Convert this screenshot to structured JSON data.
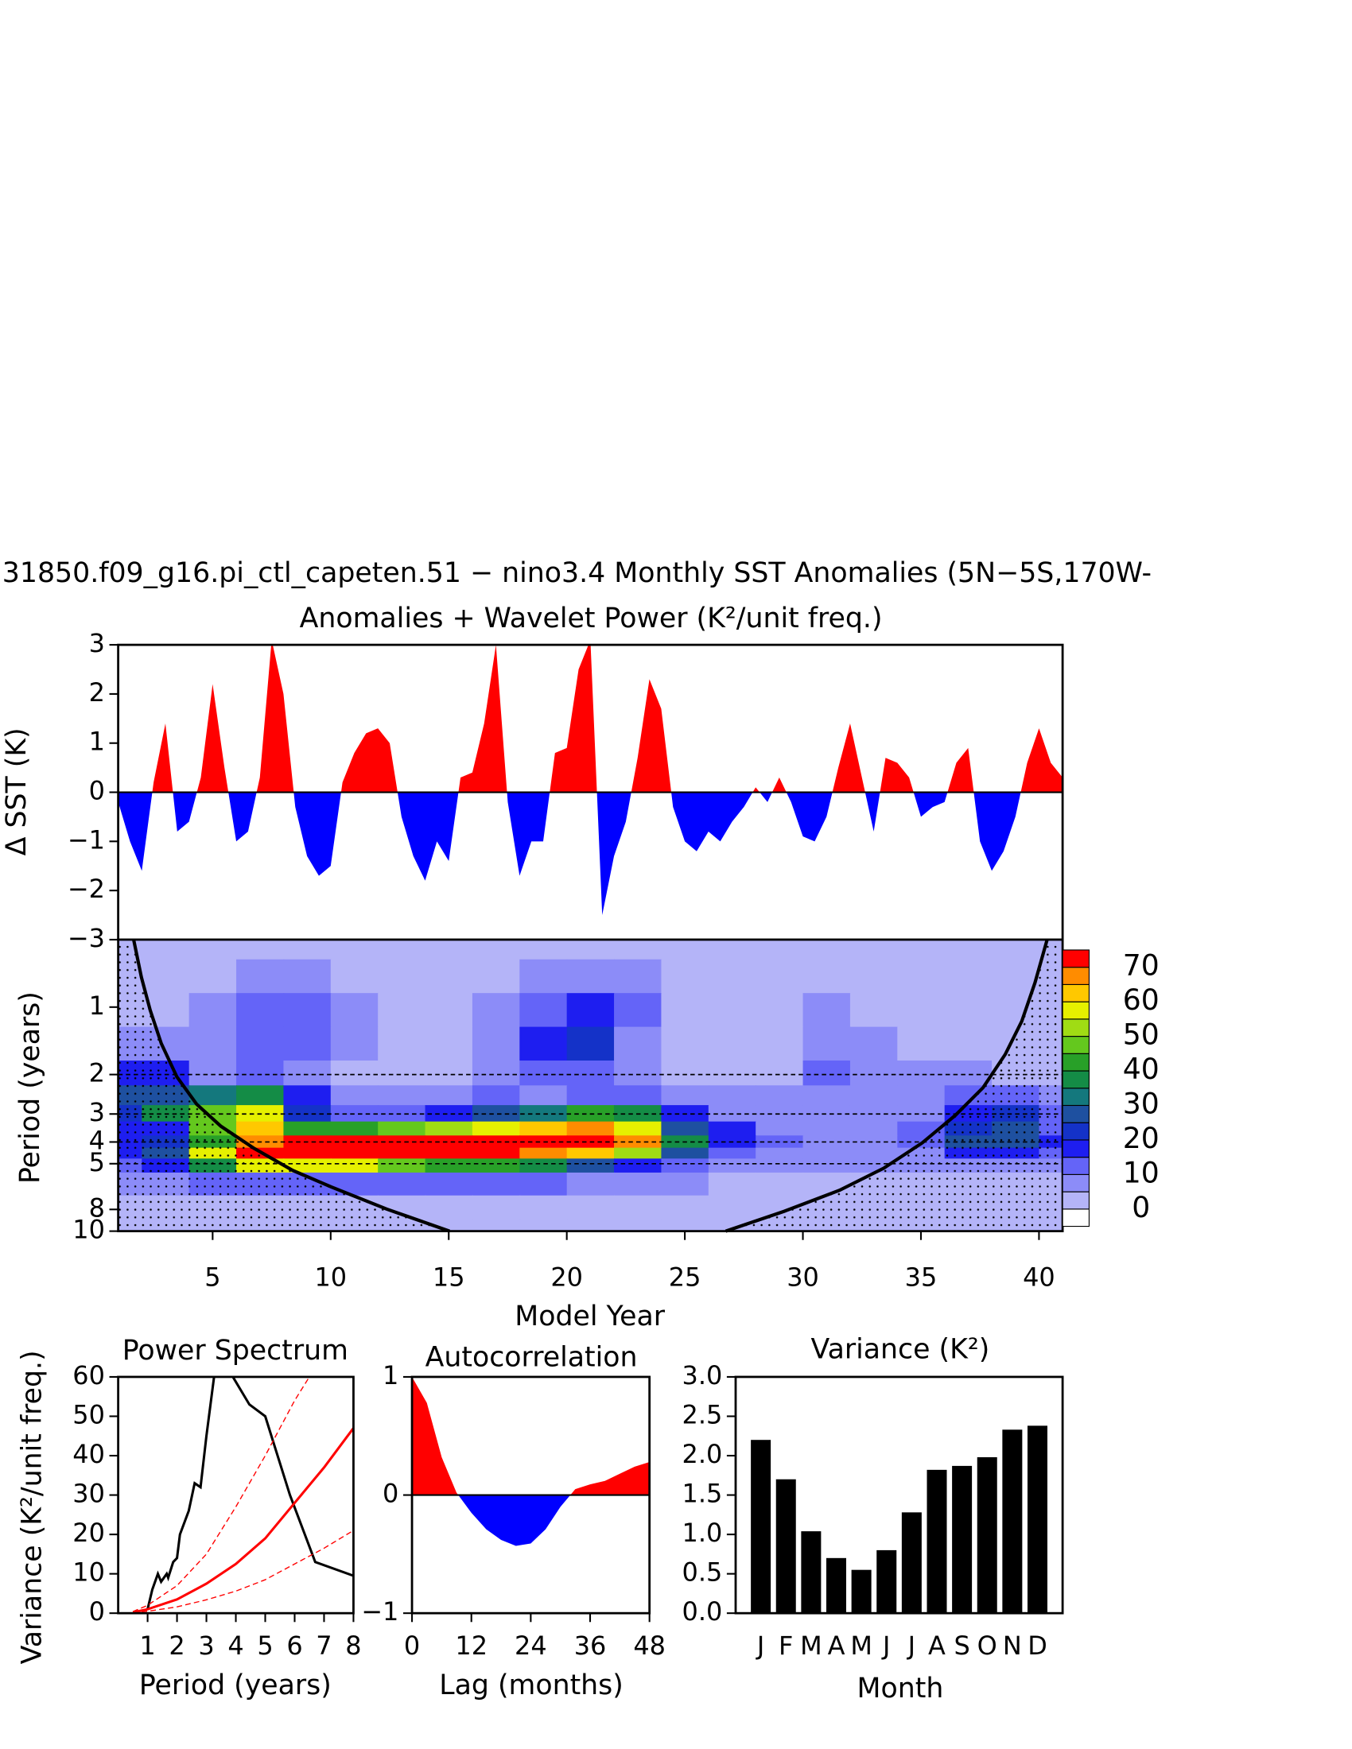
{
  "chart_data": [
    {
      "type": "area",
      "title": "31850.f09_g16.pi_ctl_capeten.51 − nino3.4 Monthly SST Anomalies (5N−5S,170W-",
      "subtitle": "Anomalies + Wavelet Power (K²/unit freq.)",
      "y_label": "Δ SST (K)",
      "x": [
        1,
        1.5,
        2,
        2.5,
        3,
        3.5,
        4,
        4.5,
        5,
        5.5,
        6,
        6.5,
        7,
        7.5,
        8,
        8.5,
        9,
        9.5,
        10,
        10.5,
        11,
        11.5,
        12,
        12.5,
        13,
        13.5,
        14,
        14.5,
        15,
        15.5,
        16,
        16.5,
        17,
        17.5,
        18,
        18.5,
        19,
        19.5,
        20,
        20.5,
        21,
        21.5,
        22,
        22.5,
        23,
        23.5,
        24,
        24.5,
        25,
        25.5,
        26,
        26.5,
        27,
        27.5,
        28,
        28.5,
        29,
        29.5,
        30,
        30.5,
        31,
        31.5,
        32,
        32.5,
        33,
        33.5,
        34,
        34.5,
        35,
        35.5,
        36,
        36.5,
        37,
        37.5,
        38,
        38.5,
        39,
        39.5,
        40,
        40.5,
        41
      ],
      "values": [
        -0.2,
        -1.0,
        -1.6,
        0.2,
        1.4,
        -0.8,
        -0.6,
        0.3,
        2.2,
        0.5,
        -1.0,
        -0.8,
        0.3,
        3.1,
        2.0,
        -0.3,
        -1.3,
        -1.7,
        -1.5,
        0.2,
        0.8,
        1.2,
        1.3,
        1.0,
        -0.5,
        -1.3,
        -1.8,
        -1.0,
        -1.4,
        0.3,
        0.4,
        1.4,
        3.0,
        -0.2,
        -1.7,
        -1.0,
        -1.0,
        0.8,
        0.9,
        2.5,
        3.1,
        -2.5,
        -1.3,
        -0.6,
        0.7,
        2.3,
        1.7,
        -0.3,
        -1.0,
        -1.2,
        -0.8,
        -1.0,
        -0.6,
        -0.3,
        0.1,
        -0.2,
        0.3,
        -0.2,
        -0.9,
        -1.0,
        -0.5,
        0.5,
        1.4,
        0.3,
        -0.8,
        0.7,
        0.6,
        0.3,
        -0.5,
        -0.3,
        -0.2,
        0.6,
        0.9,
        -1.0,
        -1.6,
        -1.2,
        -0.5,
        0.6,
        1.3,
        0.6,
        0.3
      ],
      "positive_color": "#ff0000",
      "negative_color": "#0000ff",
      "xlim": [
        1,
        41
      ],
      "ylim": [
        -3,
        3
      ],
      "yticks": [
        {
          "value": -3,
          "label": "−3"
        },
        {
          "value": -2,
          "label": "−2"
        },
        {
          "value": -1,
          "label": "−1"
        },
        0,
        1,
        2,
        3
      ]
    },
    {
      "type": "contour",
      "x_label": "Model Year",
      "y_label": "Period (years)",
      "x": [
        1,
        3,
        5,
        7,
        9,
        11,
        13,
        15,
        17,
        19,
        21,
        23,
        25,
        27,
        29,
        31,
        33,
        35,
        37,
        39,
        41
      ],
      "y": [
        0.5,
        0.75,
        1,
        1.5,
        2,
        2.5,
        3,
        3.5,
        4,
        4.5,
        5,
        6,
        8,
        10
      ],
      "z": [
        [
          3,
          3,
          3,
          3,
          3,
          3,
          3,
          3,
          3,
          3,
          3,
          3,
          3,
          3,
          3,
          3,
          3,
          3,
          3,
          3,
          3
        ],
        [
          3,
          3,
          3,
          5,
          6,
          3,
          3,
          3,
          3,
          5,
          5,
          5,
          3,
          3,
          3,
          3,
          3,
          3,
          3,
          3,
          3
        ],
        [
          3,
          3,
          6,
          12,
          14,
          6,
          3,
          3,
          9,
          14,
          16,
          12,
          3,
          3,
          3,
          6,
          3,
          3,
          3,
          3,
          3
        ],
        [
          6,
          6,
          8,
          12,
          12,
          6,
          3,
          3,
          9,
          15,
          20,
          8,
          3,
          3,
          3,
          8,
          8,
          4,
          3,
          3,
          3
        ],
        [
          18,
          15,
          8,
          10,
          8,
          4,
          3,
          3,
          6,
          12,
          10,
          6,
          3,
          3,
          3,
          10,
          8,
          6,
          6,
          4,
          3
        ],
        [
          25,
          28,
          30,
          35,
          15,
          6,
          5,
          6,
          10,
          8,
          10,
          10,
          6,
          6,
          6,
          7,
          7,
          8,
          10,
          12,
          8
        ],
        [
          20,
          35,
          45,
          55,
          22,
          12,
          12,
          15,
          25,
          30,
          40,
          38,
          15,
          8,
          5,
          5,
          5,
          6,
          15,
          20,
          10
        ],
        [
          15,
          18,
          45,
          60,
          40,
          40,
          45,
          50,
          55,
          60,
          65,
          55,
          28,
          15,
          8,
          8,
          8,
          10,
          22,
          25,
          12
        ],
        [
          18,
          20,
          40,
          65,
          72,
          72,
          72,
          72,
          72,
          72,
          70,
          65,
          35,
          18,
          10,
          8,
          8,
          10,
          25,
          25,
          15
        ],
        [
          15,
          25,
          55,
          72,
          72,
          72,
          72,
          72,
          70,
          68,
          60,
          50,
          28,
          12,
          8,
          8,
          8,
          8,
          15,
          15,
          10
        ],
        [
          10,
          15,
          35,
          55,
          55,
          55,
          45,
          40,
          40,
          35,
          25,
          18,
          12,
          8,
          6,
          6,
          6,
          6,
          8,
          8,
          6
        ],
        [
          5,
          6,
          10,
          12,
          12,
          12,
          10,
          10,
          10,
          10,
          8,
          6,
          5,
          4,
          3,
          3,
          3,
          3,
          3,
          3,
          3
        ],
        [
          3,
          3,
          3,
          3,
          3,
          3,
          3,
          3,
          3,
          3,
          3,
          3,
          3,
          3,
          3,
          3,
          3,
          3,
          3,
          3,
          3
        ],
        [
          4,
          4,
          4,
          4,
          4,
          4,
          4,
          4,
          4,
          4,
          4,
          4,
          4,
          4,
          4,
          4,
          4,
          4,
          4,
          4,
          4
        ]
      ],
      "levels": [
        0,
        5,
        10,
        15,
        20,
        25,
        30,
        35,
        40,
        45,
        50,
        55,
        60,
        65,
        70
      ],
      "colors": [
        "#ffffff",
        "#b4b4f8",
        "#8c8cf8",
        "#6464f8",
        "#1e1ef0",
        "#1432c8",
        "#1e50a0",
        "#14787d",
        "#148c46",
        "#28a028",
        "#64c81e",
        "#a0dc14",
        "#e6f000",
        "#ffc800",
        "#ff8c00",
        "#ff0000"
      ],
      "colorbar_ticks": [
        0,
        10,
        20,
        30,
        40,
        50,
        60,
        70
      ],
      "xlim": [
        1,
        41
      ],
      "ylim": [
        0.5,
        10
      ],
      "log_y": true,
      "xticks": [
        5,
        10,
        15,
        20,
        25,
        30,
        35,
        40
      ],
      "yticks": [
        1,
        2,
        3,
        4,
        5,
        8,
        10
      ],
      "dashed_lines": [
        2,
        3,
        4,
        5
      ]
    },
    {
      "type": "line",
      "title": "Power Spectrum",
      "x_label": "Period (years)",
      "y_label": "Variance (K²/unit freq.)",
      "series": [
        {
          "color": "#000000",
          "dashed": false,
          "x": [
            1,
            1.16,
            1.35,
            1.46,
            1.65,
            1.7,
            1.87,
            2,
            2.1,
            2.4,
            2.6,
            2.8,
            3,
            3.26,
            3.5,
            3.9,
            4.46,
            5,
            5.84,
            6.7,
            8
          ],
          "values": [
            1,
            6,
            10,
            8,
            10,
            9,
            13,
            14,
            20,
            26,
            33,
            32,
            45,
            60,
            65,
            60,
            53,
            50,
            30,
            13,
            9.5
          ]
        },
        {
          "color": "#ff0000",
          "dashed": false,
          "x": [
            0.5,
            1,
            2,
            3,
            4,
            5,
            6,
            7,
            8
          ],
          "values": [
            0.2,
            1,
            3.5,
            7.5,
            12.5,
            19,
            28,
            37,
            47
          ]
        },
        {
          "color": "#ff0000",
          "dashed": true,
          "x": [
            0.5,
            1,
            2,
            3,
            4,
            5,
            6,
            6.5
          ],
          "values": [
            0.4,
            2,
            7,
            15,
            27,
            40,
            54,
            60
          ]
        },
        {
          "color": "#ff0000",
          "dashed": true,
          "x": [
            0.5,
            1,
            2,
            3,
            4,
            5,
            6,
            7,
            8
          ],
          "values": [
            0.1,
            0.5,
            1.6,
            3.4,
            5.6,
            8.5,
            12.5,
            16.5,
            21
          ]
        }
      ],
      "xlim": [
        0,
        8
      ],
      "ylim": [
        0,
        60
      ],
      "xticks": [
        1,
        2,
        3,
        4,
        5,
        6,
        7,
        8
      ],
      "yticks": [
        0,
        10,
        20,
        30,
        40,
        50,
        60
      ]
    },
    {
      "type": "area",
      "title": "Autocorrelation",
      "x_label": "Lag (months)",
      "x": [
        0,
        3,
        6,
        9,
        12,
        15,
        18,
        21,
        24,
        27,
        30,
        33,
        36,
        39,
        42,
        45,
        48
      ],
      "values": [
        1,
        0.78,
        0.32,
        0.02,
        -0.15,
        -0.29,
        -0.38,
        -0.43,
        -0.41,
        -0.29,
        -0.1,
        0.05,
        0.09,
        0.12,
        0.18,
        0.24,
        0.28
      ],
      "positive_color": "#ff0000",
      "negative_color": "#0000ff",
      "xlim": [
        0,
        48
      ],
      "ylim": [
        -1,
        1
      ],
      "xticks": [
        0,
        12,
        24,
        36,
        48
      ],
      "yticks": [
        {
          "value": -1,
          "label": "−1"
        },
        0,
        1
      ]
    },
    {
      "type": "bar",
      "title": "Variance (K²)",
      "x_label": "Month",
      "categories": [
        "J",
        "F",
        "M",
        "A",
        "M",
        "J",
        "J",
        "A",
        "S",
        "O",
        "N",
        "D"
      ],
      "values": [
        2.2,
        1.7,
        1.04,
        0.7,
        0.55,
        0.8,
        1.28,
        1.82,
        1.87,
        1.98,
        2.33,
        2.38
      ],
      "color": "#000000",
      "ylim": [
        0,
        3
      ],
      "yticks": [
        {
          "value": 0,
          "label": "0.0"
        },
        0.5,
        {
          "value": 1,
          "label": "1.0"
        },
        1.5,
        {
          "value": 2,
          "label": "2.0"
        },
        2.5,
        {
          "value": 3,
          "label": "3.0"
        }
      ]
    }
  ]
}
